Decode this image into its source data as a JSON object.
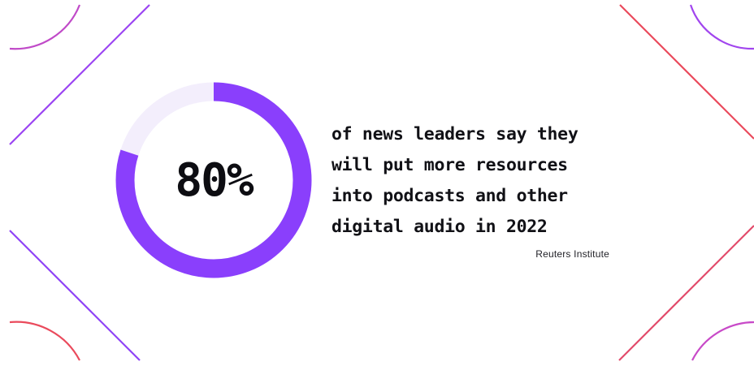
{
  "chart_data": {
    "type": "pie",
    "values": [
      80,
      20
    ],
    "value_label": "80%",
    "colors": {
      "filled": "#8a3ffc",
      "remainder": "#f3eefc"
    }
  },
  "statement": {
    "line1": "of news leaders say they",
    "line2": "will put more resources",
    "line3": "into podcasts and other",
    "line4": "digital audio in 2022"
  },
  "source": "Reuters Institute",
  "decor_colors": {
    "purple": "#9b45f2",
    "magenta": "#c54ad0",
    "red": "#ea4a5c"
  }
}
